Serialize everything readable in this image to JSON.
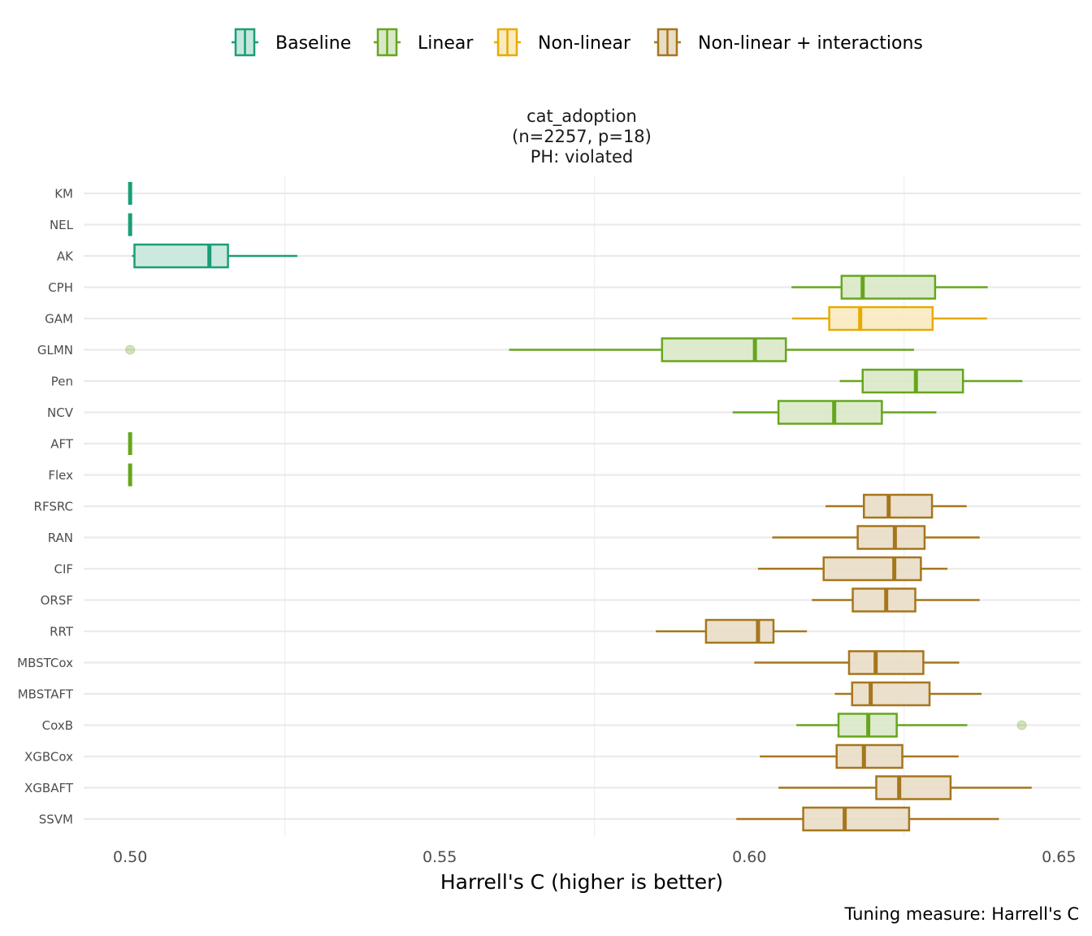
{
  "chart_data": {
    "type": "boxplot",
    "orientation": "horizontal",
    "title_lines": [
      "cat_adoption",
      "(n=2257, p=18)",
      "PH: violated"
    ],
    "xlabel": "Harrell's C (higher is better)",
    "ylabel": "",
    "caption": "Tuning measure: Harrell's C",
    "xlim": [
      0.4925,
      0.6535
    ],
    "x_ticks": [
      0.5,
      0.55,
      0.6,
      0.65
    ],
    "x_tick_labels": [
      "0.50",
      "0.55",
      "0.60",
      "0.65"
    ],
    "grid": true,
    "legend_position": "top",
    "legend": [
      {
        "name": "Baseline",
        "stroke": "#1b9e77",
        "fill": "#c6e7dd"
      },
      {
        "name": "Linear",
        "stroke": "#66a61e",
        "fill": "#d9e9c7"
      },
      {
        "name": "Non-linear",
        "stroke": "#e6ab02",
        "fill": "#f9eac0"
      },
      {
        "name": "Non-linear + interactions",
        "stroke": "#a6761d",
        "fill": "#e9ddc6"
      }
    ],
    "categories": [
      "KM",
      "NEL",
      "AK",
      "CPH",
      "GAM",
      "GLMN",
      "Pen",
      "NCV",
      "AFT",
      "Flex",
      "RFSRC",
      "RAN",
      "CIF",
      "ORSF",
      "RRT",
      "MBSTCox",
      "MBSTAFT",
      "CoxB",
      "XGBCox",
      "XGBAFT",
      "SSVM"
    ],
    "boxes": [
      {
        "learner": "KM",
        "group": "Baseline",
        "whisker_low": 0.5,
        "q1": 0.5,
        "median": 0.5,
        "q3": 0.5,
        "whisker_high": 0.5,
        "outliers": []
      },
      {
        "learner": "NEL",
        "group": "Baseline",
        "whisker_low": 0.5,
        "q1": 0.5,
        "median": 0.5,
        "q3": 0.5,
        "whisker_high": 0.5,
        "outliers": []
      },
      {
        "learner": "AK",
        "group": "Baseline",
        "whisker_low": 0.5003,
        "q1": 0.5007,
        "median": 0.5128,
        "q3": 0.5158,
        "whisker_high": 0.527,
        "outliers": []
      },
      {
        "learner": "CPH",
        "group": "Linear",
        "whisker_low": 0.6068,
        "q1": 0.6149,
        "median": 0.6183,
        "q3": 0.63,
        "whisker_high": 0.6385,
        "outliers": []
      },
      {
        "learner": "GAM",
        "group": "Non-linear",
        "whisker_low": 0.6069,
        "q1": 0.6129,
        "median": 0.6179,
        "q3": 0.6296,
        "whisker_high": 0.6384,
        "outliers": []
      },
      {
        "learner": "GLMN",
        "group": "Linear",
        "whisker_low": 0.5612,
        "q1": 0.5859,
        "median": 0.6009,
        "q3": 0.6059,
        "whisker_high": 0.6266,
        "outliers": [
          0.5
        ]
      },
      {
        "learner": "Pen",
        "group": "Linear",
        "whisker_low": 0.6146,
        "q1": 0.6183,
        "median": 0.6269,
        "q3": 0.6345,
        "whisker_high": 0.6441,
        "outliers": []
      },
      {
        "learner": "NCV",
        "group": "Linear",
        "whisker_low": 0.5973,
        "q1": 0.6047,
        "median": 0.6137,
        "q3": 0.6214,
        "whisker_high": 0.6302,
        "outliers": []
      },
      {
        "learner": "AFT",
        "group": "Linear",
        "whisker_low": 0.5,
        "q1": 0.5,
        "median": 0.5,
        "q3": 0.5,
        "whisker_high": 0.5,
        "outliers": []
      },
      {
        "learner": "Flex",
        "group": "Linear",
        "whisker_low": 0.5,
        "q1": 0.5,
        "median": 0.5,
        "q3": 0.5,
        "whisker_high": 0.5,
        "outliers": []
      },
      {
        "learner": "RFSRC",
        "group": "Non-linear + interactions",
        "whisker_low": 0.6123,
        "q1": 0.6185,
        "median": 0.6225,
        "q3": 0.6295,
        "whisker_high": 0.6351,
        "outliers": []
      },
      {
        "learner": "RAN",
        "group": "Non-linear + interactions",
        "whisker_low": 0.6037,
        "q1": 0.6175,
        "median": 0.6235,
        "q3": 0.6283,
        "whisker_high": 0.6372,
        "outliers": []
      },
      {
        "learner": "CIF",
        "group": "Non-linear + interactions",
        "whisker_low": 0.6014,
        "q1": 0.612,
        "median": 0.6234,
        "q3": 0.6277,
        "whisker_high": 0.632,
        "outliers": []
      },
      {
        "learner": "ORSF",
        "group": "Non-linear + interactions",
        "whisker_low": 0.6101,
        "q1": 0.6167,
        "median": 0.6221,
        "q3": 0.6268,
        "whisker_high": 0.6372,
        "outliers": []
      },
      {
        "learner": "RRT",
        "group": "Non-linear + interactions",
        "whisker_low": 0.5849,
        "q1": 0.593,
        "median": 0.6014,
        "q3": 0.6039,
        "whisker_high": 0.6093,
        "outliers": []
      },
      {
        "learner": "MBSTCox",
        "group": "Non-linear + interactions",
        "whisker_low": 0.6008,
        "q1": 0.6161,
        "median": 0.6204,
        "q3": 0.6281,
        "whisker_high": 0.6339,
        "outliers": []
      },
      {
        "learner": "MBSTAFT",
        "group": "Non-linear + interactions",
        "whisker_low": 0.6138,
        "q1": 0.6166,
        "median": 0.6196,
        "q3": 0.6291,
        "whisker_high": 0.6375,
        "outliers": []
      },
      {
        "learner": "CoxB",
        "group": "Linear",
        "whisker_low": 0.6076,
        "q1": 0.6144,
        "median": 0.6192,
        "q3": 0.6238,
        "whisker_high": 0.6352,
        "outliers": [
          0.644
        ]
      },
      {
        "learner": "XGBCox",
        "group": "Non-linear + interactions",
        "whisker_low": 0.6017,
        "q1": 0.6141,
        "median": 0.6185,
        "q3": 0.6247,
        "whisker_high": 0.6338,
        "outliers": []
      },
      {
        "learner": "XGBAFT",
        "group": "Non-linear + interactions",
        "whisker_low": 0.6047,
        "q1": 0.6205,
        "median": 0.6242,
        "q3": 0.6325,
        "whisker_high": 0.6456,
        "outliers": []
      },
      {
        "learner": "SSVM",
        "group": "Non-linear + interactions",
        "whisker_low": 0.5979,
        "q1": 0.6087,
        "median": 0.6154,
        "q3": 0.6258,
        "whisker_high": 0.6403,
        "outliers": []
      }
    ]
  }
}
